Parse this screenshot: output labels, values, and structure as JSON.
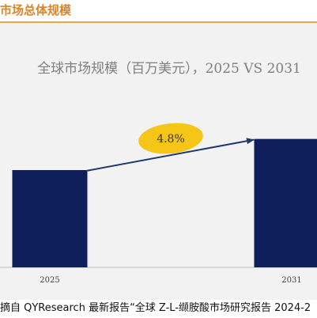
{
  "section": {
    "title": "市场总体规模"
  },
  "source": {
    "text": "摘自 QYResearch 最新报告“全球 Z-L-缬胺酸市场研究报告 2024-2"
  },
  "colors": {
    "bar": "#0f1f5c",
    "arrow": "#1f3a6b",
    "badge": "#f5c518",
    "title": "#7f7f7f",
    "panel": "#f2f2f2",
    "accent": "#d9862a"
  },
  "chart_data": {
    "type": "bar",
    "title": "全球市场规模（百万美元），2025 VS 2031",
    "categories": [
      "2025",
      "2031"
    ],
    "values": [
      100,
      132
    ],
    "growth_label": "4.8%",
    "xlabel": "",
    "ylabel": "",
    "grid": false,
    "legend": "none"
  }
}
